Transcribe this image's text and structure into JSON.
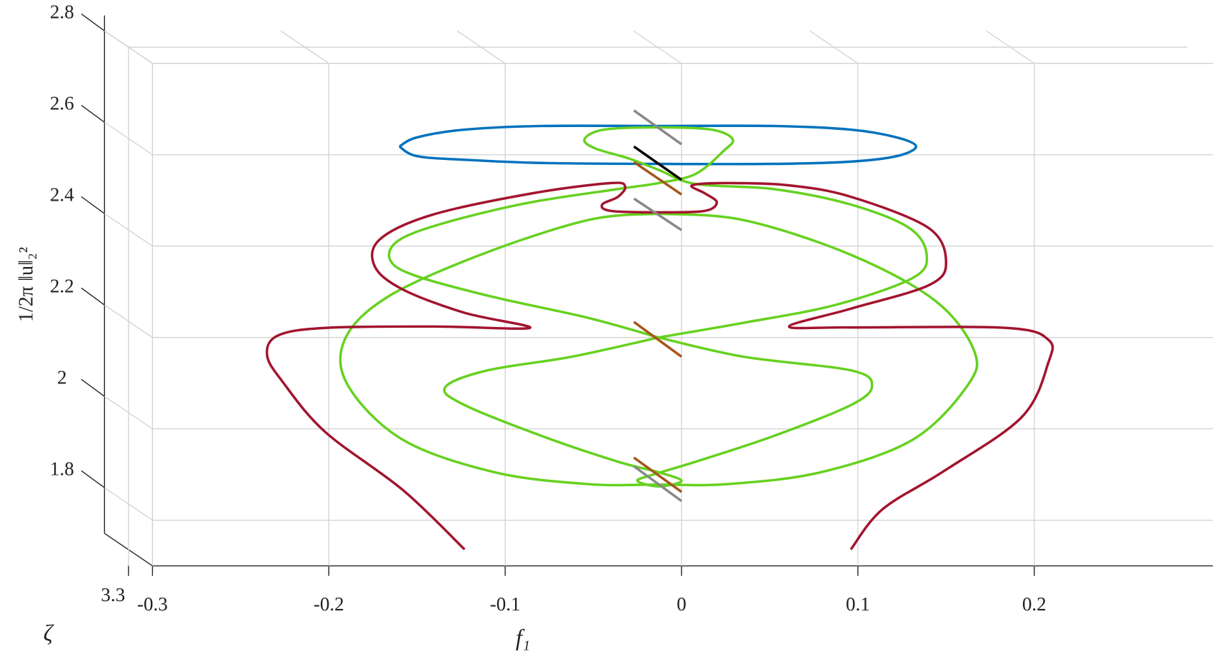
{
  "chart_data": {
    "type": "line3d",
    "x_label": "f₁",
    "y_label": "1/2π ‖u‖₂²",
    "z_label": "ζ",
    "xlim": [
      -0.3,
      0.3
    ],
    "xticks": [
      -0.3,
      -0.2,
      -0.1,
      0,
      0.1,
      0.2
    ],
    "ylim": [
      1.7,
      2.8
    ],
    "yticks": [
      1.8,
      2,
      2.2,
      2.4,
      2.6,
      2.8
    ],
    "zticks": [
      3.3
    ],
    "grid": true,
    "series": [
      {
        "color": "#0072bd",
        "x": [
          -0.16,
          -0.15,
          -0.123,
          -0.079,
          -0.013,
          0.052,
          0.096,
          0.122,
          0.133,
          0.122,
          0.096,
          0.052,
          -0.013,
          -0.079,
          -0.123,
          -0.15,
          -0.16
        ],
        "values": [
          2.618,
          2.638,
          2.655,
          2.663,
          2.663,
          2.663,
          2.655,
          2.638,
          2.618,
          2.597,
          2.585,
          2.58,
          2.58,
          2.582,
          2.589,
          2.597,
          2.618
        ]
      },
      {
        "color": "#66d11f",
        "x": [
          -0.013,
          -0.053,
          -0.106,
          -0.15,
          -0.165,
          -0.161,
          -0.136,
          -0.088,
          -0.036,
          -0.013,
          0.008,
          0.024,
          0.029,
          0.017,
          -0.013,
          -0.044,
          -0.055,
          -0.049,
          -0.03,
          -0.013,
          0.008,
          0.052,
          0.096,
          0.129,
          0.139,
          0.131,
          0.087,
          0.035,
          -0.013
        ],
        "values": [
          2.2,
          2.243,
          2.288,
          2.334,
          2.368,
          2.411,
          2.449,
          2.494,
          2.525,
          2.538,
          2.558,
          2.609,
          2.634,
          2.655,
          2.66,
          2.655,
          2.634,
          2.614,
          2.592,
          2.567,
          2.536,
          2.525,
          2.491,
          2.44,
          2.381,
          2.33,
          2.271,
          2.232,
          2.2
        ]
      },
      {
        "color": "#66d11f",
        "x": [
          -0.013,
          -0.053,
          -0.114,
          -0.167,
          -0.191,
          -0.189,
          -0.158,
          -0.106,
          -0.053,
          -0.013,
          0.026,
          0.079,
          0.131,
          0.162,
          0.166,
          0.144,
          0.096,
          0.035,
          -0.013
        ],
        "values": [
          2.471,
          2.457,
          2.381,
          2.288,
          2.195,
          2.094,
          1.976,
          1.905,
          1.879,
          1.878,
          1.879,
          1.905,
          1.976,
          2.094,
          2.17,
          2.28,
          2.381,
          2.457,
          2.471
        ]
      },
      {
        "color": "#66d11f",
        "x": [
          -0.013,
          -0.062,
          -0.11,
          -0.134,
          -0.123,
          -0.079,
          -0.036,
          -0.013,
          0.0,
          -0.013,
          -0.025,
          -0.016,
          0.008,
          0.052,
          0.096,
          0.108,
          0.096,
          0.035,
          -0.013
        ],
        "values": [
          2.2,
          2.158,
          2.128,
          2.091,
          2.052,
          1.984,
          1.928,
          1.905,
          1.886,
          1.874,
          1.886,
          1.9,
          1.928,
          1.984,
          2.052,
          2.094,
          2.128,
          2.158,
          2.2
        ]
      },
      {
        "color": "#a2142f",
        "x": [
          -0.123,
          -0.158,
          -0.202,
          -0.226,
          -0.235,
          -0.229,
          -0.202,
          -0.141,
          -0.086,
          -0.123,
          -0.158,
          -0.174,
          -0.171,
          -0.141,
          -0.084,
          -0.04,
          -0.032,
          -0.036,
          -0.045,
          -0.04,
          -0.013,
          0.013,
          0.02,
          0.013,
          0.006,
          0.026,
          0.061,
          0.096,
          0.14,
          0.15,
          0.14,
          0.096,
          0.061,
          0.096,
          0.184,
          0.208,
          0.208,
          0.193,
          0.149,
          0.114,
          0.096
        ],
        "values": [
          1.736,
          1.866,
          1.993,
          2.102,
          2.161,
          2.204,
          2.221,
          2.224,
          2.221,
          2.254,
          2.305,
          2.356,
          2.415,
          2.469,
          2.516,
          2.538,
          2.53,
          2.508,
          2.491,
          2.477,
          2.474,
          2.477,
          2.496,
          2.516,
          2.533,
          2.538,
          2.533,
          2.508,
          2.44,
          2.364,
          2.314,
          2.263,
          2.224,
          2.222,
          2.221,
          2.195,
          2.145,
          2.026,
          1.908,
          1.824,
          1.736
        ]
      },
      {
        "color": "#888888",
        "x": [
          -0.027,
          0
        ],
        "values": [
          2.697,
          2.623
        ]
      },
      {
        "color": "#000000",
        "x": [
          -0.027,
          0
        ],
        "values": [
          2.618,
          2.545
        ]
      },
      {
        "color": "#a5551a",
        "x": [
          -0.027,
          0
        ],
        "values": [
          2.584,
          2.513
        ]
      },
      {
        "color": "#888888",
        "x": [
          -0.027,
          0
        ],
        "values": [
          2.504,
          2.435
        ]
      },
      {
        "color": "#a5551a",
        "x": [
          -0.027,
          0
        ],
        "values": [
          2.234,
          2.158
        ]
      },
      {
        "color": "#a5551a",
        "x": [
          -0.027,
          0
        ],
        "values": [
          1.937,
          1.862
        ]
      },
      {
        "color": "#888888",
        "x": [
          -0.027,
          0
        ],
        "values": [
          1.918,
          1.842
        ]
      }
    ]
  }
}
